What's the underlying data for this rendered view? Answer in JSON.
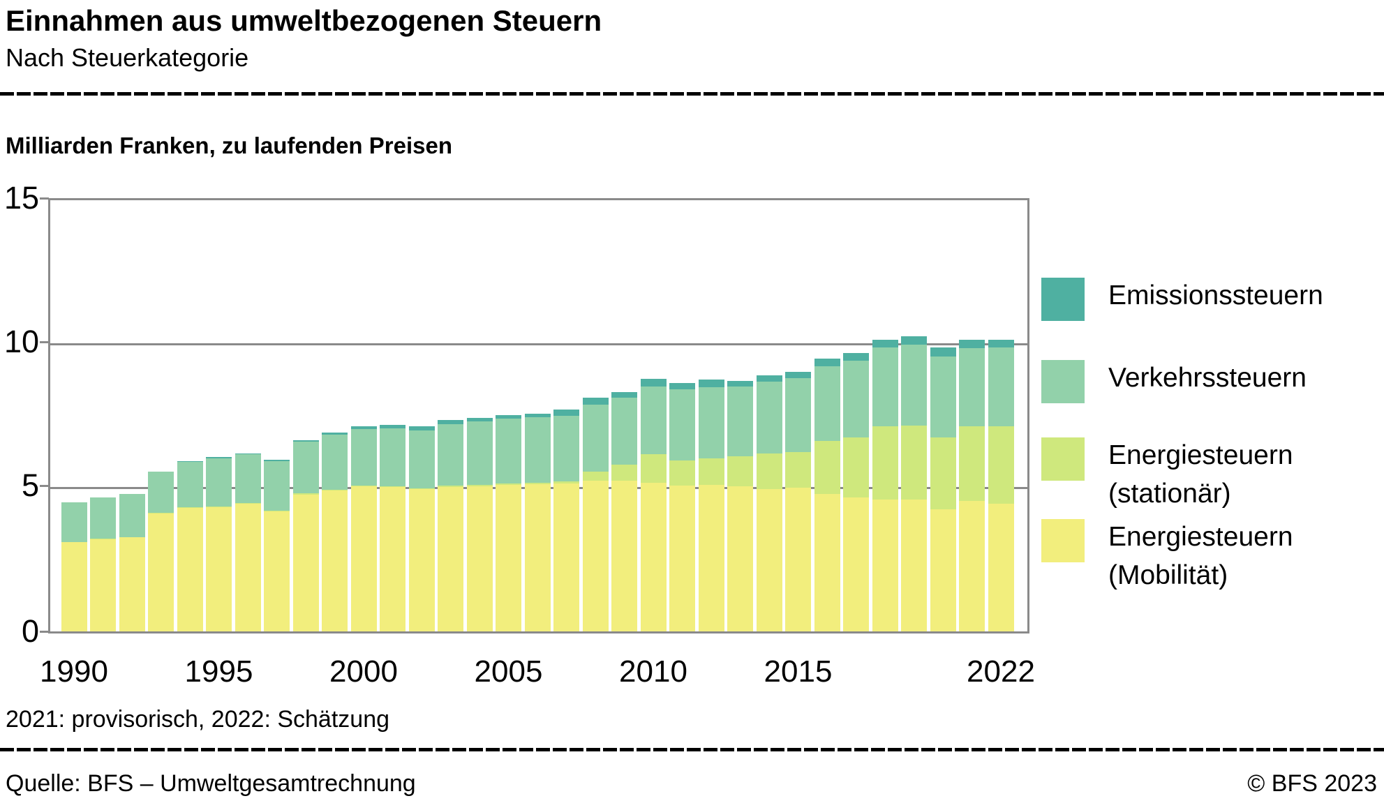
{
  "header": {
    "title": "Einnahmen aus umweltbezogenen Steuern",
    "subtitle": "Nach Steuerkategorie"
  },
  "unit_label": "Milliarden Franken, zu laufenden Preisen",
  "footer": {
    "note": "2021: provisorisch, 2022: Schätzung",
    "source": "Quelle: BFS – Umweltgesamtrechnung",
    "copyright": "© BFS 2023"
  },
  "legend": [
    {
      "lines": [
        "Emissionssteuern"
      ],
      "color": "#4FB0A1"
    },
    {
      "lines": [
        "Verkehrssteuern"
      ],
      "color": "#92D1AA"
    },
    {
      "lines": [
        "Energiesteuern",
        "(stationär)"
      ],
      "color": "#CFE87D"
    },
    {
      "lines": [
        "Energiesteuern",
        "(Mobilität)"
      ],
      "color": "#F2EE7D"
    }
  ],
  "colors": {
    "grid": "#8A8A8A",
    "emissions": "#4FB0A1",
    "transport_tax": "#92D1AA",
    "energy_stationary": "#CFE87D",
    "energy_mobility": "#F2EE7D"
  },
  "chart_data": {
    "type": "bar",
    "stacked": true,
    "title": "Einnahmen aus umweltbezogenen Steuern",
    "subtitle": "Nach Steuerkategorie",
    "ylabel": "Milliarden Franken, zu laufenden Preisen",
    "ylim": [
      0,
      15
    ],
    "y_ticks": [
      0,
      5,
      10,
      15
    ],
    "x_tick_years": [
      1990,
      1995,
      2000,
      2005,
      2010,
      2015,
      2022
    ],
    "grid": true,
    "legend_position": "right",
    "years": [
      1990,
      1991,
      1992,
      1993,
      1994,
      1995,
      1996,
      1997,
      1998,
      1999,
      2000,
      2001,
      2002,
      2003,
      2004,
      2005,
      2006,
      2007,
      2008,
      2009,
      2010,
      2011,
      2012,
      2013,
      2014,
      2015,
      2016,
      2017,
      2018,
      2019,
      2020,
      2021,
      2022
    ],
    "series": [
      {
        "name": "Energiesteuern (Mobilität)",
        "color": "#F2EE7D",
        "values": [
          3.1,
          3.2,
          3.27,
          4.1,
          4.3,
          4.33,
          4.45,
          4.18,
          4.77,
          4.9,
          5.05,
          5.02,
          4.95,
          5.03,
          5.06,
          5.1,
          5.12,
          5.15,
          5.25,
          5.25,
          5.17,
          5.08,
          5.1,
          5.05,
          4.95,
          5.0,
          4.79,
          4.66,
          4.58,
          4.6,
          4.25,
          4.54,
          4.45
        ]
      },
      {
        "name": "Energiesteuern (stationär)",
        "color": "#CFE87D",
        "values": [
          0.02,
          0.02,
          0.02,
          0.02,
          0.02,
          0.02,
          0.02,
          0.02,
          0.03,
          0.03,
          0.03,
          0.03,
          0.03,
          0.04,
          0.04,
          0.04,
          0.05,
          0.08,
          0.32,
          0.56,
          1.0,
          0.87,
          0.91,
          1.04,
          1.24,
          1.25,
          1.84,
          2.08,
          2.56,
          2.55,
          2.5,
          2.6,
          2.69
        ]
      },
      {
        "name": "Verkehrssteuern",
        "color": "#92D1AA",
        "values": [
          1.38,
          1.45,
          1.49,
          1.43,
          1.57,
          1.68,
          1.69,
          1.73,
          1.8,
          1.92,
          1.95,
          2.01,
          2.02,
          2.15,
          2.2,
          2.26,
          2.28,
          2.27,
          2.33,
          2.31,
          2.36,
          2.47,
          2.48,
          2.43,
          2.5,
          2.55,
          2.6,
          2.68,
          2.74,
          2.82,
          2.82,
          2.72,
          2.74
        ]
      },
      {
        "name": "Emissionssteuern",
        "color": "#4FB0A1",
        "values": [
          0.0,
          0.0,
          0.0,
          0.0,
          0.04,
          0.04,
          0.04,
          0.04,
          0.05,
          0.08,
          0.12,
          0.12,
          0.14,
          0.13,
          0.12,
          0.13,
          0.13,
          0.22,
          0.24,
          0.2,
          0.27,
          0.22,
          0.27,
          0.2,
          0.22,
          0.22,
          0.26,
          0.26,
          0.27,
          0.3,
          0.3,
          0.28,
          0.26
        ]
      }
    ]
  }
}
